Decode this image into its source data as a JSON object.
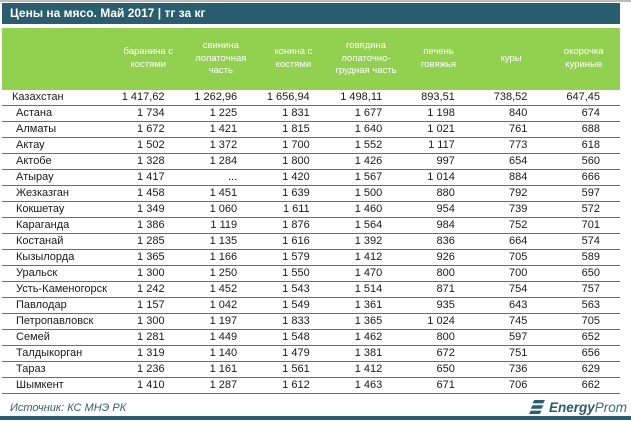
{
  "title": "Цены на мясо. Май 2017 | тг за кг",
  "chart_data": {
    "type": "table",
    "title": "Цены на мясо. Май 2017",
    "unit": "тг за кг",
    "region_column_header": "",
    "columns": [
      "баранина с костями",
      "свинина лопаточная часть",
      "конина с костями",
      "говядина лопаточно-грудная часть",
      "печень говяжья",
      "куры",
      "окорочка куриные"
    ],
    "rows": [
      {
        "name": "Казахстан",
        "country": true,
        "values": [
          "1 417,62",
          "1 262,96",
          "1 656,94",
          "1 498,11",
          "893,51",
          "738,52",
          "647,45"
        ]
      },
      {
        "name": "Астана",
        "values": [
          "1 734",
          "1 225",
          "1 831",
          "1 677",
          "1 198",
          "840",
          "674"
        ]
      },
      {
        "name": "Алматы",
        "values": [
          "1 672",
          "1 421",
          "1 815",
          "1 640",
          "1 021",
          "761",
          "688"
        ]
      },
      {
        "name": "Актау",
        "values": [
          "1 502",
          "1 372",
          "1 700",
          "1 552",
          "1 117",
          "773",
          "618"
        ]
      },
      {
        "name": "Актобе",
        "values": [
          "1 328",
          "1 284",
          "1 800",
          "1 426",
          "997",
          "654",
          "560"
        ]
      },
      {
        "name": "Атырау",
        "values": [
          "1 417",
          "...",
          "1 420",
          "1 567",
          "1 014",
          "884",
          "666"
        ]
      },
      {
        "name": "Жезказган",
        "values": [
          "1 458",
          "1 451",
          "1 639",
          "1 500",
          "880",
          "792",
          "597"
        ]
      },
      {
        "name": "Кокшетау",
        "values": [
          "1 349",
          "1 060",
          "1 611",
          "1 460",
          "954",
          "739",
          "572"
        ]
      },
      {
        "name": "Караганда",
        "values": [
          "1 386",
          "1 119",
          "1 876",
          "1 564",
          "984",
          "752",
          "701"
        ]
      },
      {
        "name": "Костанай",
        "values": [
          "1 285",
          "1 135",
          "1 616",
          "1 392",
          "836",
          "664",
          "574"
        ]
      },
      {
        "name": "Кызылорда",
        "values": [
          "1 365",
          "1 166",
          "1 579",
          "1 412",
          "926",
          "705",
          "589"
        ]
      },
      {
        "name": "Уральск",
        "values": [
          "1 300",
          "1 250",
          "1 550",
          "1 470",
          "800",
          "700",
          "650"
        ]
      },
      {
        "name": "Усть-Каменогорск",
        "values": [
          "1 242",
          "1 452",
          "1 543",
          "1 514",
          "871",
          "754",
          "757"
        ]
      },
      {
        "name": "Павлодар",
        "values": [
          "1 157",
          "1 042",
          "1 549",
          "1 361",
          "935",
          "643",
          "563"
        ]
      },
      {
        "name": "Петропавловск",
        "values": [
          "1 300",
          "1 197",
          "1 833",
          "1 365",
          "1 024",
          "745",
          "705"
        ]
      },
      {
        "name": "Семей",
        "values": [
          "1 281",
          "1 449",
          "1 548",
          "1 462",
          "800",
          "597",
          "652"
        ]
      },
      {
        "name": "Талдыкорган",
        "values": [
          "1 319",
          "1 140",
          "1 479",
          "1 381",
          "672",
          "751",
          "656"
        ]
      },
      {
        "name": "Тараз",
        "values": [
          "1 236",
          "1 161",
          "1 561",
          "1 412",
          "650",
          "736",
          "629"
        ]
      },
      {
        "name": "Шымкент",
        "values": [
          "1 410",
          "1 287",
          "1 612",
          "1 463",
          "671",
          "706",
          "662"
        ]
      }
    ]
  },
  "footer": {
    "source": "Источник: КС МНЭ РК",
    "logo_bold": "Energy",
    "logo_light": "Prom"
  },
  "colors": {
    "accent_teal": "#2a5e6e",
    "header_green": "#92d050",
    "row_border": "#6e6e6e"
  }
}
